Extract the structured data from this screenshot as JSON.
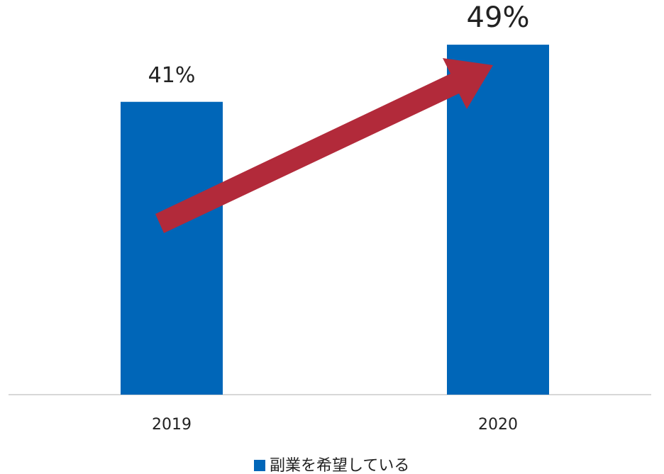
{
  "chart_data": {
    "type": "bar",
    "categories": [
      "2019",
      "2020"
    ],
    "series": [
      {
        "name": "副業を希望している",
        "color": "#0066b8",
        "values": [
          41,
          49
        ],
        "value_labels": [
          "41%",
          "49%"
        ]
      }
    ],
    "ylim": [
      0,
      50
    ]
  }
}
